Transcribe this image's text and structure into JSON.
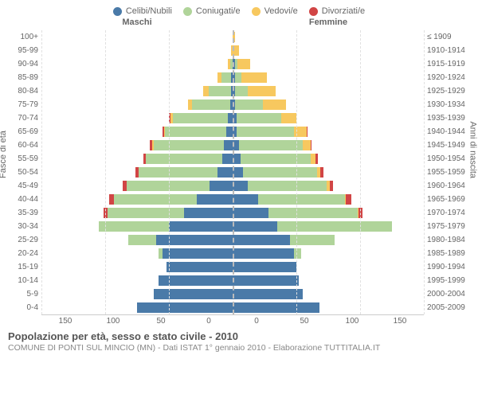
{
  "chart": {
    "type": "population-pyramid",
    "legend": [
      {
        "label": "Celibi/Nubili",
        "color": "#4a7aa8"
      },
      {
        "label": "Coniugati/e",
        "color": "#b0d49a"
      },
      {
        "label": "Vedovi/e",
        "color": "#f7c85f"
      },
      {
        "label": "Divorziati/e",
        "color": "#d14545"
      }
    ],
    "gender_left": "Maschi",
    "gender_right": "Femmine",
    "ylabel_left": "Fasce di età",
    "ylabel_right": "Anni di nascita",
    "xmax": 150,
    "xticks_left": [
      150,
      100,
      50,
      0
    ],
    "xticks_right": [
      0,
      50,
      100,
      150
    ],
    "age_labels": [
      "100+",
      "95-99",
      "90-94",
      "85-89",
      "80-84",
      "75-79",
      "70-74",
      "65-69",
      "60-64",
      "55-59",
      "50-54",
      "45-49",
      "40-44",
      "35-39",
      "30-34",
      "25-29",
      "20-24",
      "15-19",
      "10-14",
      "5-9",
      "0-4"
    ],
    "year_labels": [
      "≤ 1909",
      "1910-1914",
      "1915-1919",
      "1920-1924",
      "1925-1929",
      "1930-1934",
      "1935-1939",
      "1940-1944",
      "1945-1949",
      "1950-1954",
      "1955-1959",
      "1960-1964",
      "1965-1969",
      "1970-1974",
      "1975-1979",
      "1980-1984",
      "1985-1989",
      "1990-1994",
      "1995-1999",
      "2000-2004",
      "2005-2009"
    ],
    "rows": [
      {
        "m": {
          "c": 0,
          "co": 0,
          "v": 0,
          "d": 0
        },
        "f": {
          "c": 0,
          "co": 0,
          "v": 2,
          "d": 0
        }
      },
      {
        "m": {
          "c": 0,
          "co": 0,
          "v": 1,
          "d": 0
        },
        "f": {
          "c": 0,
          "co": 0,
          "v": 5,
          "d": 0
        }
      },
      {
        "m": {
          "c": 0,
          "co": 2,
          "v": 2,
          "d": 0
        },
        "f": {
          "c": 2,
          "co": 2,
          "v": 10,
          "d": 0
        }
      },
      {
        "m": {
          "c": 1,
          "co": 8,
          "v": 3,
          "d": 0
        },
        "f": {
          "c": 2,
          "co": 5,
          "v": 20,
          "d": 0
        }
      },
      {
        "m": {
          "c": 1,
          "co": 18,
          "v": 4,
          "d": 0
        },
        "f": {
          "c": 2,
          "co": 10,
          "v": 22,
          "d": 0
        }
      },
      {
        "m": {
          "c": 2,
          "co": 30,
          "v": 3,
          "d": 0
        },
        "f": {
          "c": 2,
          "co": 22,
          "v": 18,
          "d": 0
        }
      },
      {
        "m": {
          "c": 4,
          "co": 43,
          "v": 2,
          "d": 1
        },
        "f": {
          "c": 3,
          "co": 35,
          "v": 12,
          "d": 0
        }
      },
      {
        "m": {
          "c": 5,
          "co": 48,
          "v": 1,
          "d": 1
        },
        "f": {
          "c": 3,
          "co": 45,
          "v": 10,
          "d": 1
        }
      },
      {
        "m": {
          "c": 7,
          "co": 55,
          "v": 1,
          "d": 2
        },
        "f": {
          "c": 5,
          "co": 50,
          "v": 6,
          "d": 1
        }
      },
      {
        "m": {
          "c": 8,
          "co": 60,
          "v": 0,
          "d": 2
        },
        "f": {
          "c": 6,
          "co": 55,
          "v": 4,
          "d": 2
        }
      },
      {
        "m": {
          "c": 12,
          "co": 62,
          "v": 0,
          "d": 2
        },
        "f": {
          "c": 8,
          "co": 58,
          "v": 3,
          "d": 2
        }
      },
      {
        "m": {
          "c": 18,
          "co": 65,
          "v": 0,
          "d": 3
        },
        "f": {
          "c": 12,
          "co": 62,
          "v": 2,
          "d": 3
        }
      },
      {
        "m": {
          "c": 28,
          "co": 65,
          "v": 0,
          "d": 4
        },
        "f": {
          "c": 20,
          "co": 68,
          "v": 1,
          "d": 4
        }
      },
      {
        "m": {
          "c": 38,
          "co": 60,
          "v": 0,
          "d": 3
        },
        "f": {
          "c": 28,
          "co": 70,
          "v": 1,
          "d": 3
        }
      },
      {
        "m": {
          "c": 50,
          "co": 55,
          "v": 0,
          "d": 0
        },
        "f": {
          "c": 35,
          "co": 90,
          "v": 0,
          "d": 0
        }
      },
      {
        "m": {
          "c": 60,
          "co": 22,
          "v": 0,
          "d": 0
        },
        "f": {
          "c": 45,
          "co": 35,
          "v": 0,
          "d": 0
        }
      },
      {
        "m": {
          "c": 55,
          "co": 3,
          "v": 0,
          "d": 0
        },
        "f": {
          "c": 48,
          "co": 6,
          "v": 0,
          "d": 0
        }
      },
      {
        "m": {
          "c": 52,
          "co": 0,
          "v": 0,
          "d": 0
        },
        "f": {
          "c": 50,
          "co": 0,
          "v": 0,
          "d": 0
        }
      },
      {
        "m": {
          "c": 58,
          "co": 0,
          "v": 0,
          "d": 0
        },
        "f": {
          "c": 52,
          "co": 0,
          "v": 0,
          "d": 0
        }
      },
      {
        "m": {
          "c": 62,
          "co": 0,
          "v": 0,
          "d": 0
        },
        "f": {
          "c": 55,
          "co": 0,
          "v": 0,
          "d": 0
        }
      },
      {
        "m": {
          "c": 75,
          "co": 0,
          "v": 0,
          "d": 0
        },
        "f": {
          "c": 68,
          "co": 0,
          "v": 0,
          "d": 0
        }
      }
    ],
    "background_color": "#ffffff",
    "grid_color": "#e0e0e0"
  },
  "title": "Popolazione per età, sesso e stato civile - 2010",
  "subtitle": "COMUNE DI PONTI SUL MINCIO (MN) - Dati ISTAT 1° gennaio 2010 - Elaborazione TUTTITALIA.IT"
}
